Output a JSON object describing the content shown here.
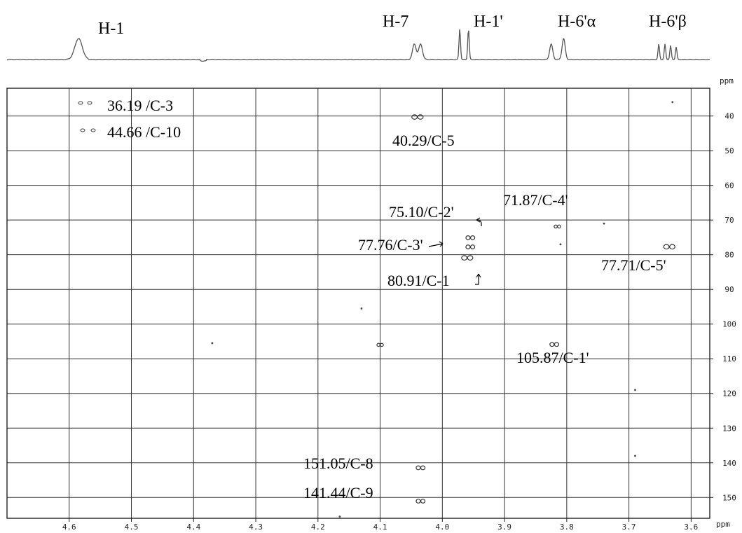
{
  "chart_data": {
    "type": "scatter",
    "title": "",
    "x_unit": "ppm",
    "y_unit": "ppm",
    "xlim": [
      4.7,
      3.57
    ],
    "ylim": [
      32,
      156
    ],
    "x_ticks": [
      "4.6",
      "4.5",
      "4.4",
      "4.3",
      "4.2",
      "4.1",
      "4.0",
      "3.9",
      "3.8",
      "3.7",
      "3.6"
    ],
    "x_tick_values": [
      4.6,
      4.5,
      4.4,
      4.3,
      4.2,
      4.1,
      4.0,
      3.9,
      3.8,
      3.7,
      3.6
    ],
    "y_ticks": [
      "40",
      "50",
      "60",
      "70",
      "80",
      "90",
      "100",
      "110",
      "120",
      "130",
      "140",
      "150"
    ],
    "y_tick_values": [
      40,
      50,
      60,
      70,
      80,
      90,
      100,
      110,
      120,
      130,
      140,
      150
    ],
    "grid": true,
    "proton_peaks": [
      {
        "label": "H-1",
        "x": 4.585
      },
      {
        "label": "H-7",
        "x": 4.04
      },
      {
        "label": "H-1'",
        "x": 3.965
      },
      {
        "label": "H-6'α",
        "x": 3.815
      },
      {
        "label": "H-6'β",
        "x": 3.64
      }
    ],
    "annotations": [
      {
        "text": "36.19 /C-3"
      },
      {
        "text": "44.66 /C-10"
      },
      {
        "text": "40.29/C-5"
      },
      {
        "text": "75.10/C-2'"
      },
      {
        "text": "71.87/C-4'"
      },
      {
        "text": "77.76/C-3'"
      },
      {
        "text": "80.91/C-1"
      },
      {
        "text": "77.71/C-5'"
      },
      {
        "text": "105.87/C-1'"
      },
      {
        "text": "151.05/C-8"
      },
      {
        "text": "141.44/C-9"
      }
    ],
    "cross_peaks": [
      {
        "x": 4.04,
        "y": 40.29,
        "size": "large"
      },
      {
        "x": 3.955,
        "y": 75.1,
        "size": "medium"
      },
      {
        "x": 3.955,
        "y": 77.76,
        "size": "medium"
      },
      {
        "x": 3.96,
        "y": 80.91,
        "size": "large"
      },
      {
        "x": 3.815,
        "y": 71.87,
        "size": "small"
      },
      {
        "x": 3.635,
        "y": 77.71,
        "size": "large"
      },
      {
        "x": 3.82,
        "y": 105.87,
        "size": "medium"
      },
      {
        "x": 4.035,
        "y": 141.44,
        "size": "medium"
      },
      {
        "x": 4.035,
        "y": 151.05,
        "size": "medium"
      },
      {
        "x": 4.1,
        "y": 106.0,
        "size": "small"
      },
      {
        "x": 3.63,
        "y": 36.0,
        "size": "dot"
      },
      {
        "x": 4.13,
        "y": 95.5,
        "size": "dot"
      },
      {
        "x": 4.37,
        "y": 105.5,
        "size": "dot"
      },
      {
        "x": 3.69,
        "y": 119.0,
        "size": "dot"
      },
      {
        "x": 3.69,
        "y": 138.0,
        "size": "dot"
      },
      {
        "x": 3.81,
        "y": 77.0,
        "size": "dot"
      },
      {
        "x": 3.74,
        "y": 71.0,
        "size": "dot"
      },
      {
        "x": 4.165,
        "y": 155.5,
        "size": "dot"
      }
    ]
  }
}
